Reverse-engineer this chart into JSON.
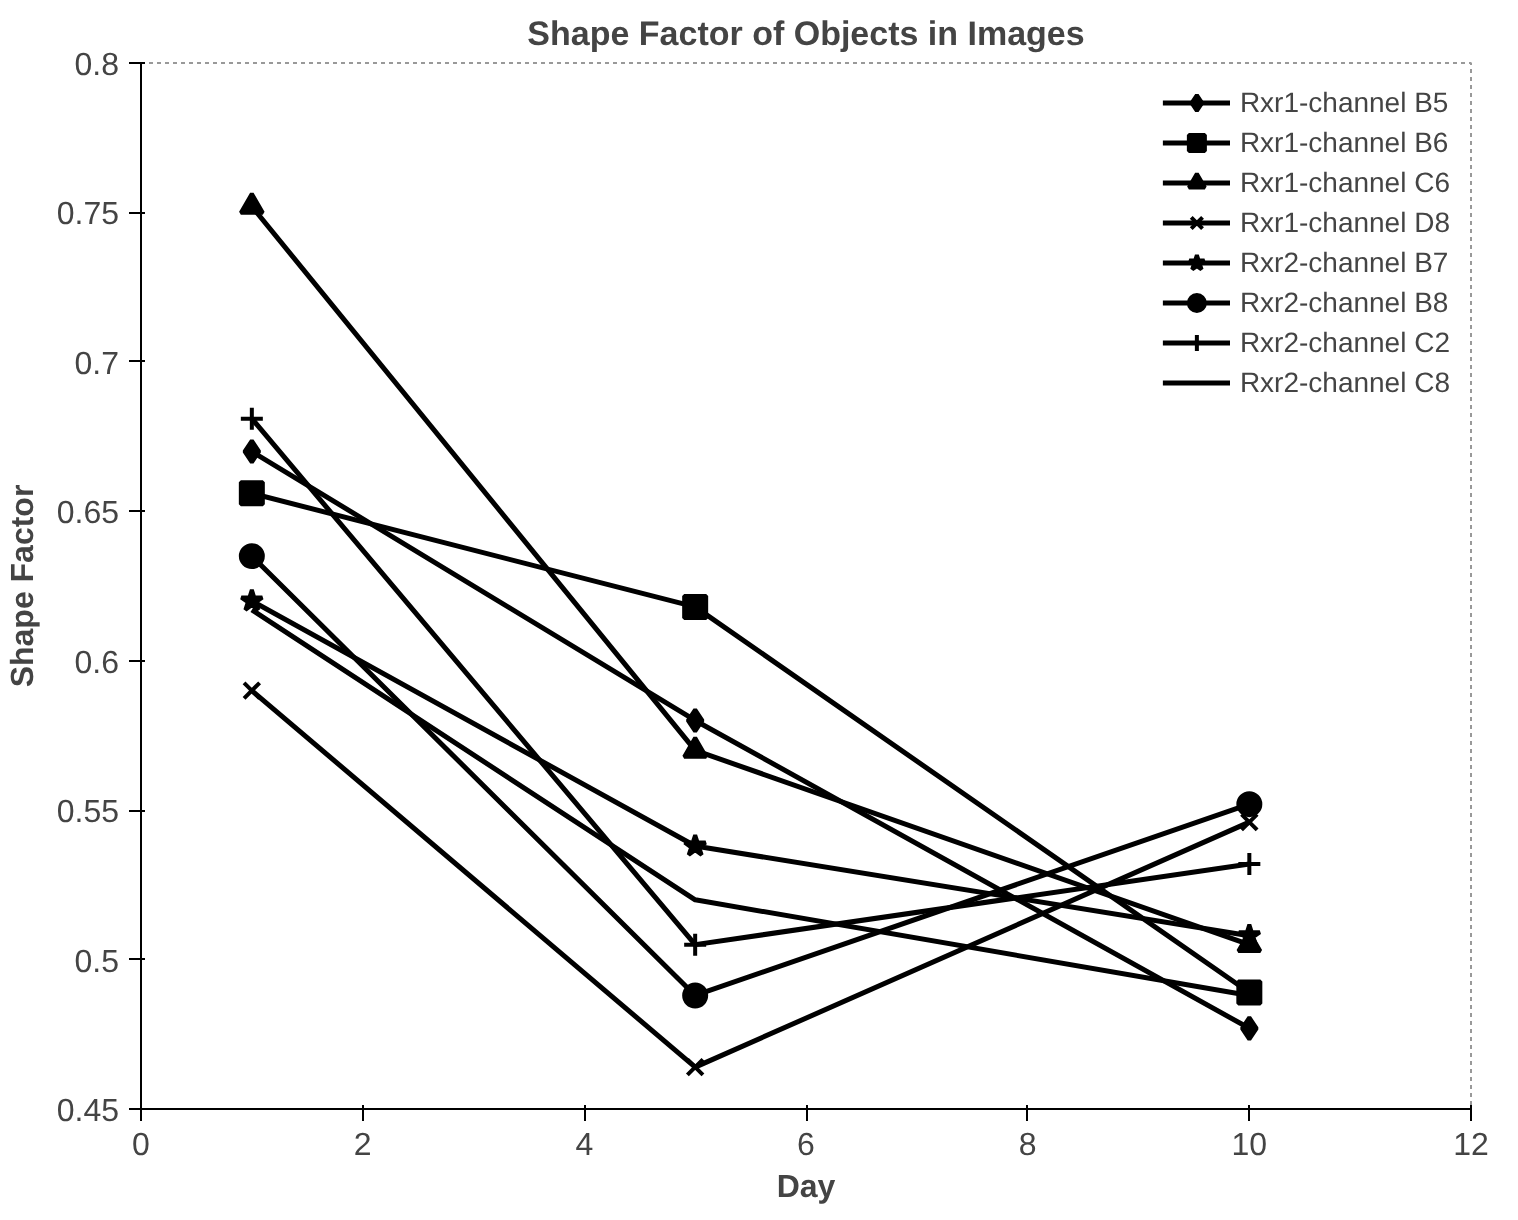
{
  "chart_data": {
    "type": "line",
    "title": "Shape Factor of Objects in Images",
    "xlabel": "Day",
    "ylabel": "Shape Factor",
    "x": [
      1,
      5,
      10
    ],
    "xlim": [
      0,
      12
    ],
    "xticks": [
      0,
      2,
      4,
      6,
      8,
      10,
      12
    ],
    "ylim": [
      0.45,
      0.8
    ],
    "yticks": [
      0.45,
      0.5,
      0.55,
      0.6,
      0.65,
      0.7,
      0.75,
      0.8
    ],
    "grid": false,
    "legend": "top right",
    "line_style": "solid",
    "series": [
      {
        "name": "Rxr1-channel B5",
        "color": "#000000",
        "marker": "diamond",
        "values": [
          0.67,
          0.58,
          0.477
        ]
      },
      {
        "name": "Rxr1-channel B6",
        "color": "#000000",
        "marker": "square",
        "values": [
          0.656,
          0.618,
          0.489
        ]
      },
      {
        "name": "Rxr1-channel C6",
        "color": "#000000",
        "marker": "triangle",
        "values": [
          0.752,
          0.57,
          0.505
        ]
      },
      {
        "name": "Rxr1-channel D8",
        "color": "#000000",
        "marker": "x",
        "values": [
          0.59,
          0.464,
          0.546
        ]
      },
      {
        "name": "Rxr2-channel B7",
        "color": "#000000",
        "marker": "star",
        "values": [
          0.62,
          0.538,
          0.508
        ]
      },
      {
        "name": "Rxr2-channel B8",
        "color": "#000000",
        "marker": "circle",
        "values": [
          0.635,
          0.488,
          0.552
        ]
      },
      {
        "name": "Rxr2-channel C2",
        "color": "#000000",
        "marker": "cross",
        "values": [
          0.681,
          0.505,
          0.532
        ]
      },
      {
        "name": "Rxr2-channel C8",
        "color": "#000000",
        "marker": "none",
        "values": [
          0.617,
          0.52,
          0.488
        ]
      }
    ]
  }
}
